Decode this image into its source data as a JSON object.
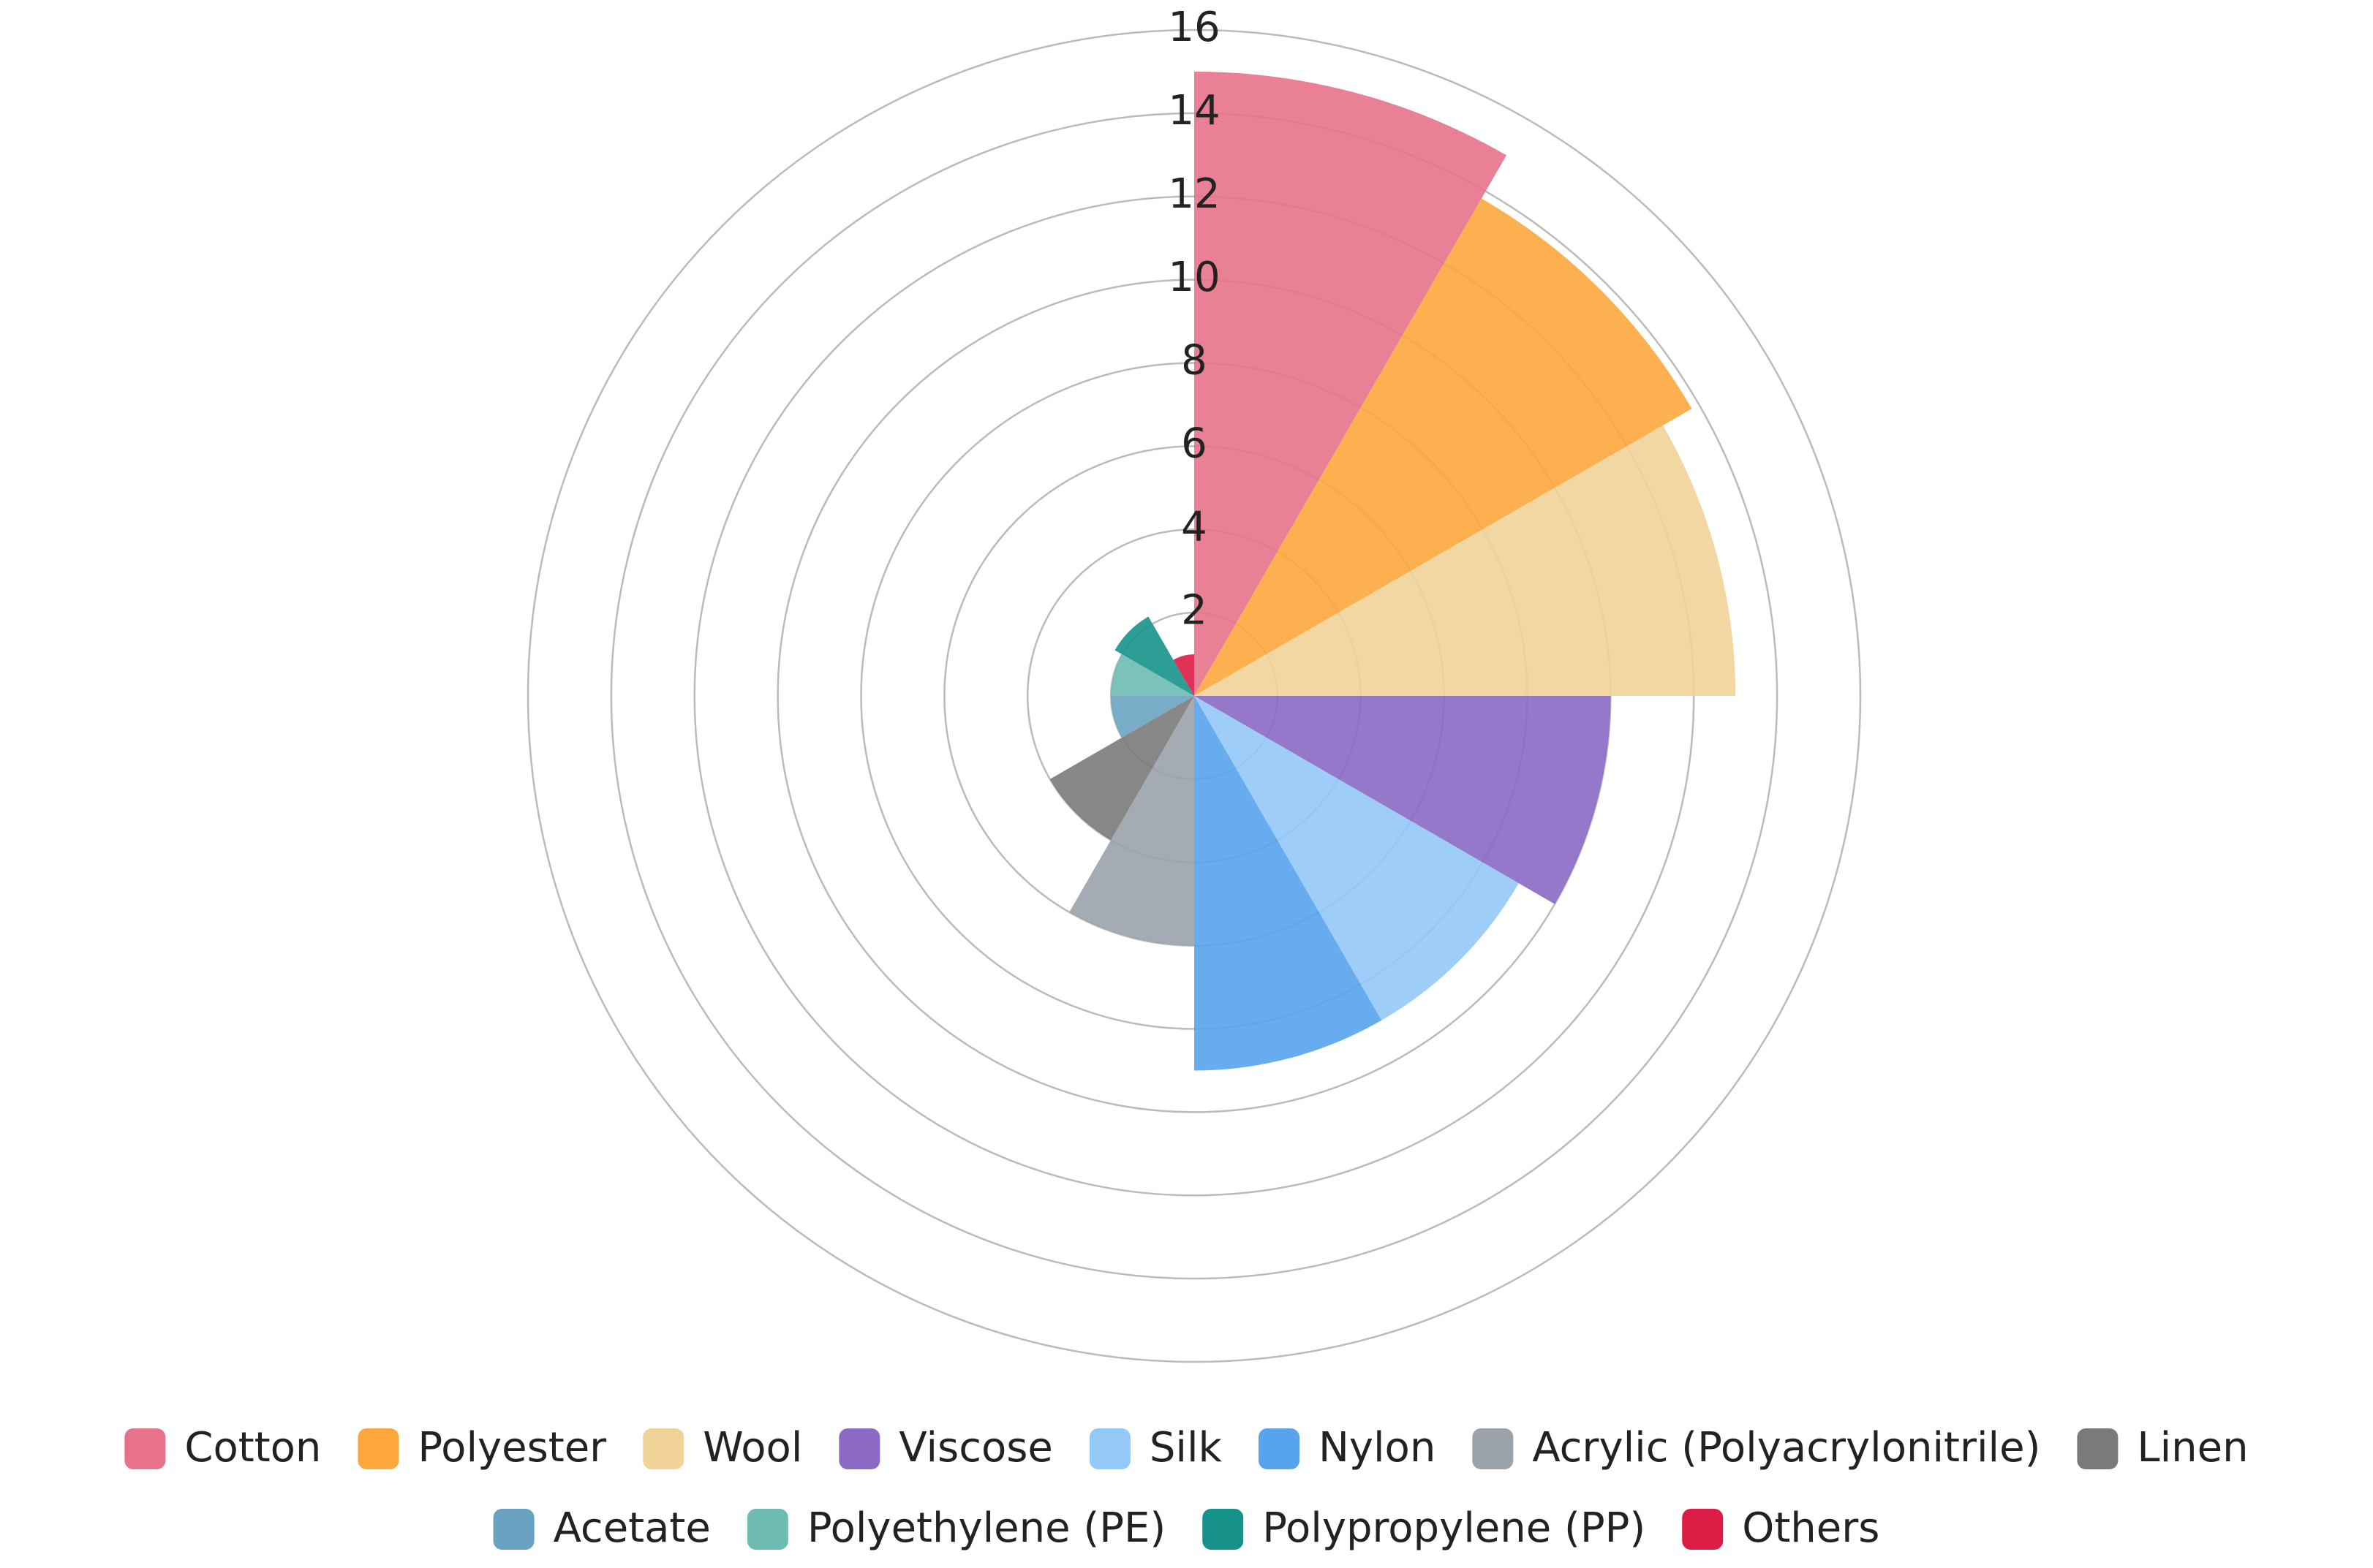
{
  "chart_data": {
    "type": "polarArea",
    "categories": [
      "Cotton",
      "Polyester",
      "Wool",
      "Viscose",
      "Silk",
      "Nylon",
      "Acrylic (Polyacrylonitrile)",
      "Linen",
      "Acetate",
      "Polyethylene (PE)",
      "Polypropylene (PP)",
      "Others"
    ],
    "values": [
      15,
      13.8,
      13,
      10,
      9,
      9,
      6,
      4,
      2,
      2,
      2.2,
      1
    ],
    "colors": [
      "#e8728a",
      "#fda73d",
      "#f1d399",
      "#8b69c5",
      "#94c8f7",
      "#58a3ee",
      "#9aa2aa",
      "#7a7a7a",
      "#6aa3c1",
      "#6dbbb1",
      "#16928a",
      "#dc1c44"
    ],
    "rlim": [
      0,
      16
    ],
    "rticks": [
      2,
      4,
      6,
      8,
      10,
      12,
      14,
      16
    ],
    "grid": true,
    "legend": "bottom"
  }
}
